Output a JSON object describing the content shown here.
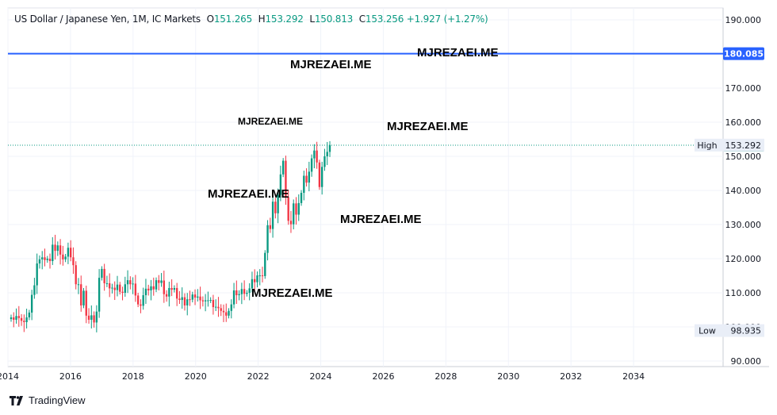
{
  "header": {
    "symbol": "US Dollar / Japanese Yen, 1M, IC Markets",
    "o_label": "O",
    "o_value": "151.265",
    "h_label": "H",
    "h_value": "153.292",
    "l_label": "L",
    "l_value": "150.813",
    "c_label": "C",
    "c_value": "153.256",
    "change": "+1.927 (+1.27%)"
  },
  "watermarks": [
    "MJREZAEI.ME",
    "MJREZAEI.ME",
    "MJREZAEI.ME",
    "MJREZAEI.ME",
    "MJREZAEI.ME",
    "MJREZAEI.ME",
    "MJREZAEI.ME"
  ],
  "footer": {
    "brand": "TradingView"
  },
  "colors": {
    "up": "#089981",
    "down": "#f23645",
    "hline": "#2962ff",
    "grid": "#f0f3fa"
  },
  "chart_data": {
    "type": "candlestick",
    "x_ticks": [
      "2014",
      "2016",
      "2018",
      "2020",
      "2022",
      "2024",
      "2026",
      "2028",
      "2030",
      "2032",
      "2034"
    ],
    "y_ticks": [
      "90.000",
      "100.000",
      "110.000",
      "120.000",
      "130.000",
      "140.000",
      "150.000",
      "160.000",
      "170.000",
      "180.000",
      "190.000"
    ],
    "ylim": [
      90,
      190
    ],
    "xlim": [
      2014,
      2036
    ],
    "horizontal_line": {
      "value": 180.085,
      "label": "180.085"
    },
    "last_price": {
      "value": 153.256,
      "label": "153.256"
    },
    "high_marker": {
      "label": "High",
      "value": "153.292"
    },
    "low_marker": {
      "label": "Low",
      "value": "98.935"
    },
    "closes": [
      102.8,
      102.1,
      103.2,
      102.6,
      101.8,
      101.4,
      102.8,
      104.2,
      109.4,
      112.2,
      118.6,
      119.8,
      120.4,
      119.6,
      120.0,
      119.3,
      124.1,
      122.3,
      123.9,
      121.2,
      119.8,
      120.6,
      123.2,
      120.4,
      118.1,
      112.5,
      112.5,
      106.3,
      110.6,
      103.3,
      102.1,
      103.4,
      101.3,
      104.5,
      114.4,
      117.0,
      112.8,
      112.8,
      111.3,
      111.5,
      110.8,
      112.4,
      110.3,
      110.0,
      112.5,
      113.7,
      112.5,
      112.7,
      109.2,
      106.6,
      106.2,
      109.3,
      111.2,
      110.7,
      111.9,
      111.0,
      113.7,
      112.9,
      113.6,
      109.6,
      108.9,
      111.4,
      110.9,
      111.4,
      108.3,
      107.9,
      108.7,
      106.3,
      108.1,
      108.0,
      109.5,
      108.6,
      108.9,
      107.8,
      107.5,
      107.8,
      107.8,
      107.9,
      105.8,
      105.9,
      105.5,
      104.7,
      104.3,
      103.3,
      104.7,
      106.6,
      110.7,
      109.3,
      109.6,
      111.1,
      109.7,
      110.0,
      111.3,
      114.0,
      113.1,
      115.1,
      115.1,
      114.9,
      121.7,
      129.8,
      128.7,
      136.7,
      133.3,
      138.7,
      144.7,
      148.7,
      138.0,
      131.1,
      130.1,
      136.2,
      132.9,
      136.3,
      139.3,
      144.3,
      142.3,
      145.5,
      149.4,
      151.7,
      148.2,
      141.0,
      146.9,
      150.0,
      151.3,
      153.3
    ]
  }
}
